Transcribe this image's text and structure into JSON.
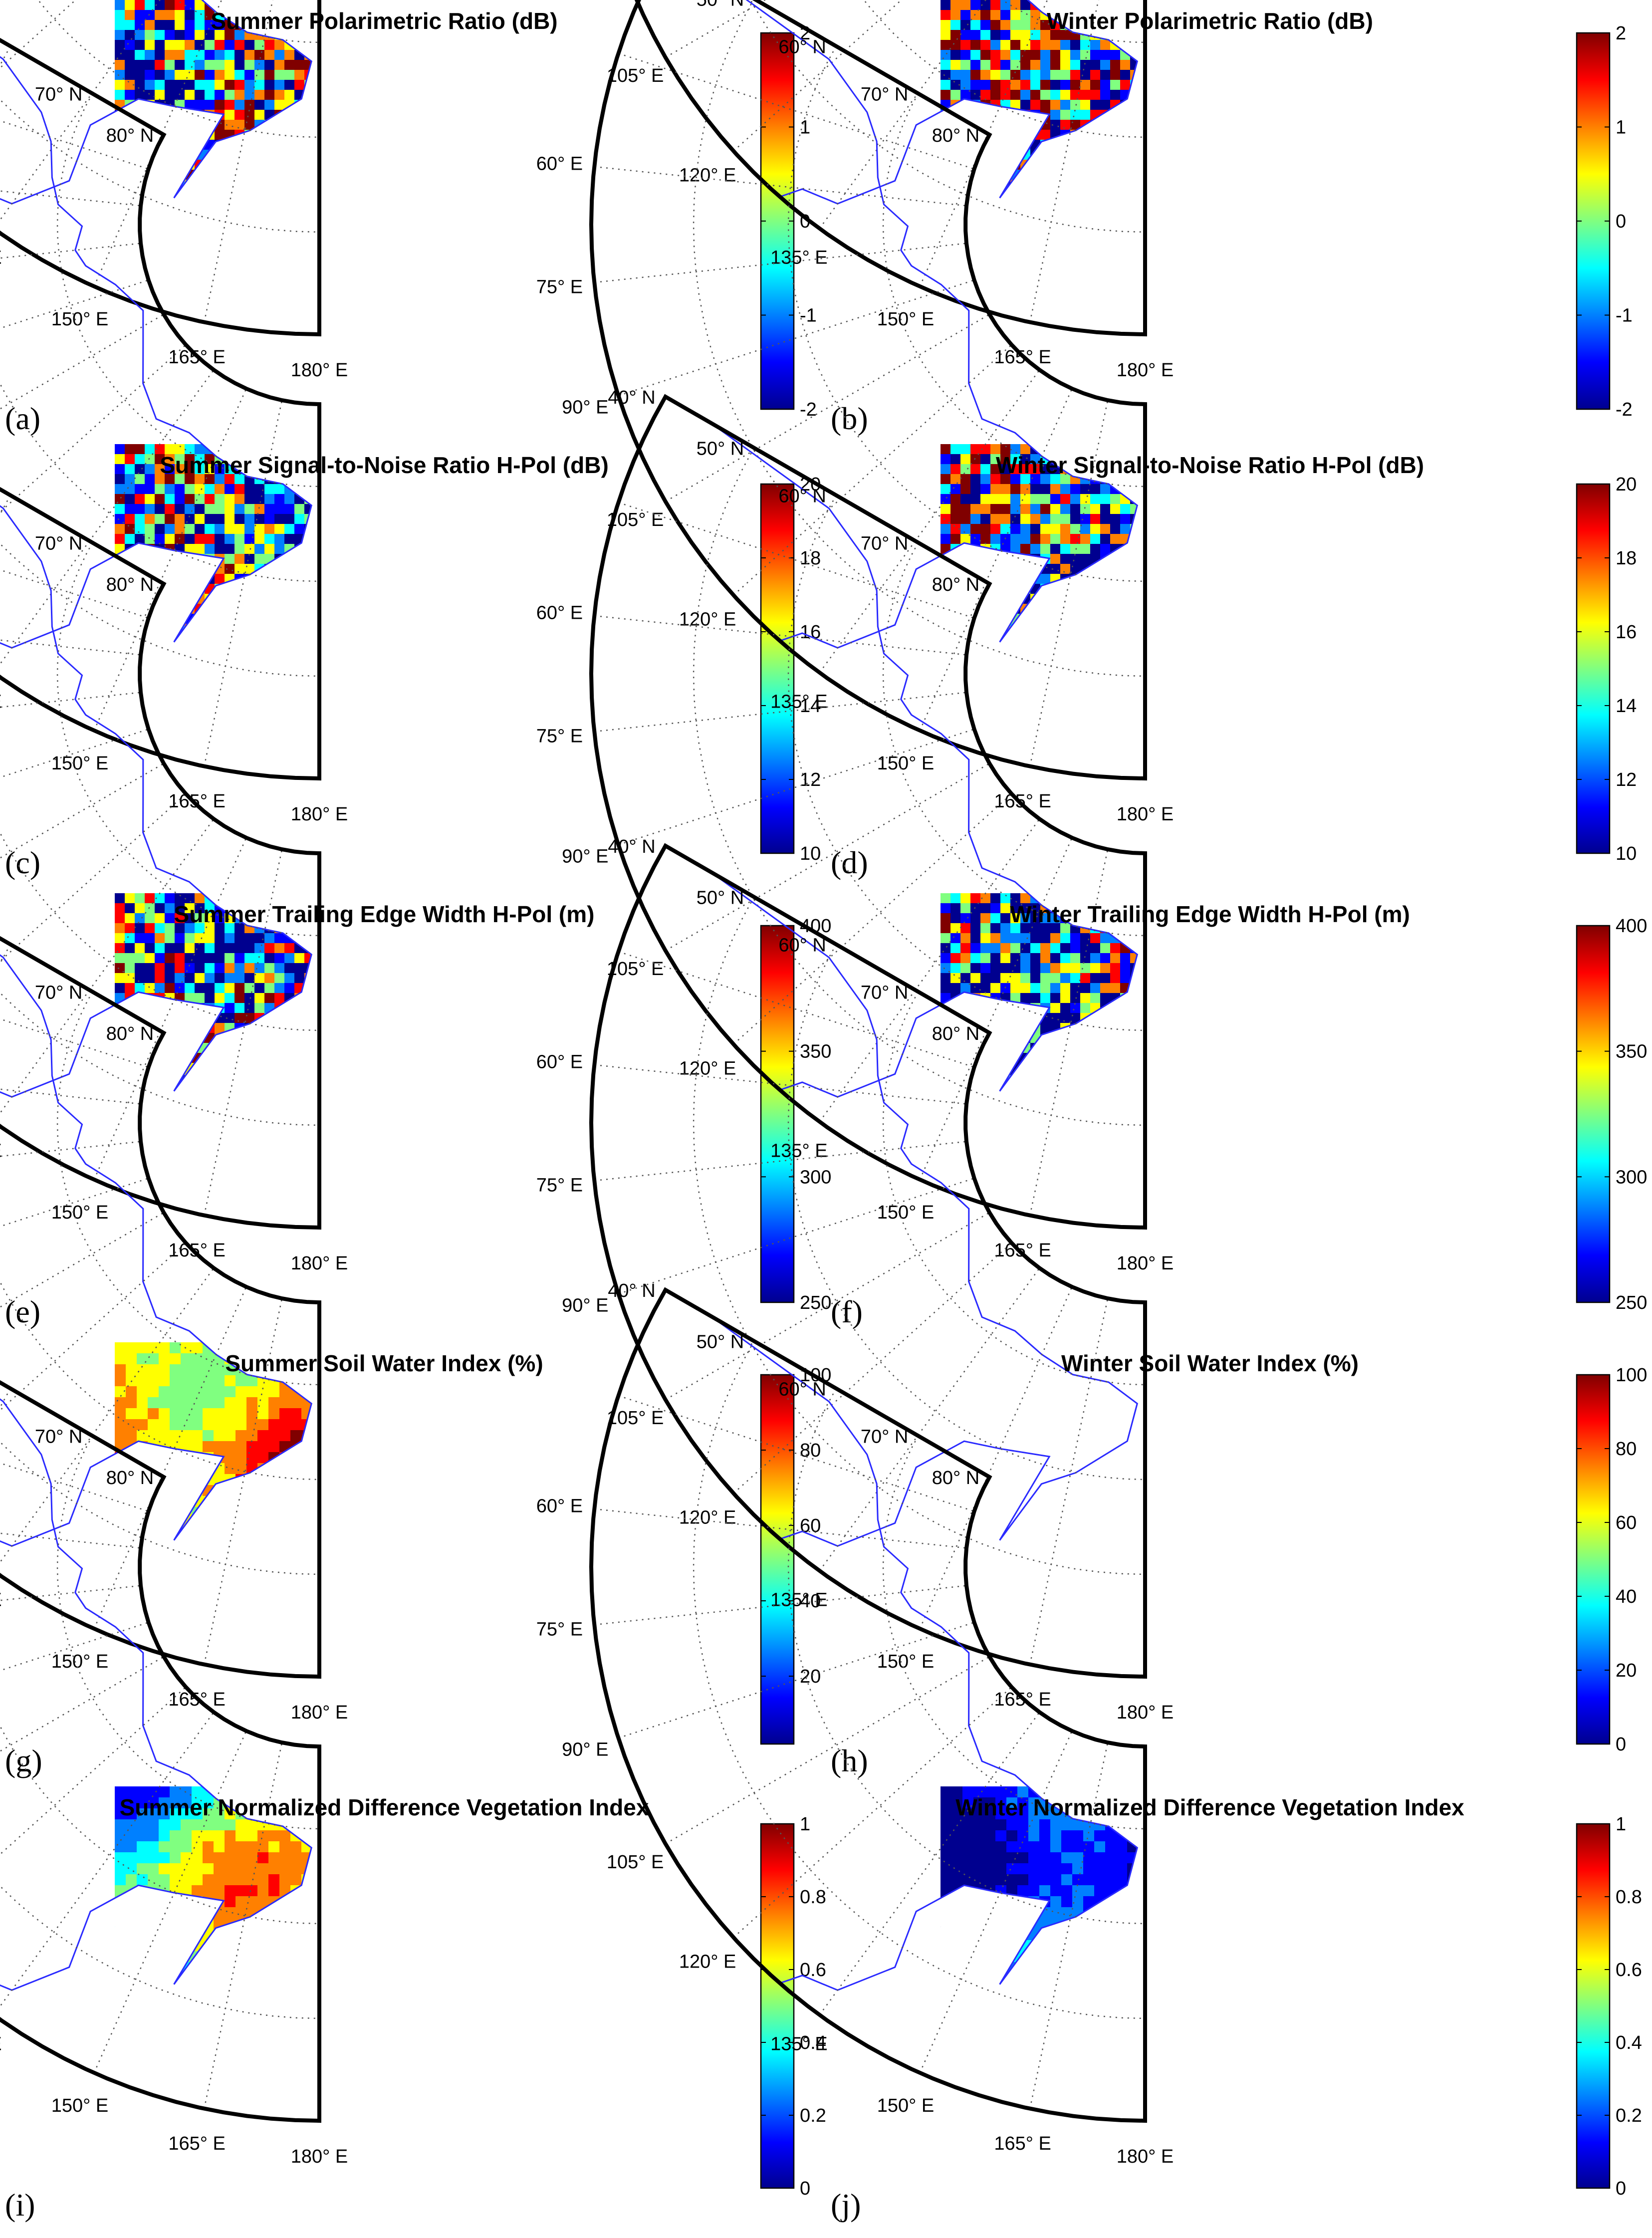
{
  "colors": {
    "jet": [
      "#00008f",
      "#0000ff",
      "#0080ff",
      "#00ffff",
      "#80ff80",
      "#ffff00",
      "#ff8000",
      "#ff0000",
      "#800000"
    ],
    "coast": "#2a2aff",
    "frame": "#000000",
    "grid": "#555555",
    "background": "#ffffff"
  },
  "lat_labels": [
    "40° N",
    "50° N",
    "60° N",
    "70° N",
    "80° N"
  ],
  "lon_labels": [
    "60° E",
    "75° E",
    "90° E",
    "105° E",
    "120° E",
    "135° E",
    "150° E",
    "165° E",
    "180° E"
  ],
  "panels": [
    {
      "id": "a",
      "label": "(a)",
      "title": "Summer Polarimetric Ratio (dB)",
      "colorbar_ticks": [
        "2",
        "1",
        "0",
        "-1",
        "-2"
      ],
      "fill": "noisy",
      "bias": 0.45
    },
    {
      "id": "b",
      "label": "(b)",
      "title": "Winter Polarimetric Ratio (dB)",
      "colorbar_ticks": [
        "2",
        "1",
        "0",
        "-1",
        "-2"
      ],
      "fill": "noisy",
      "bias": 0.42
    },
    {
      "id": "c",
      "label": "(c)",
      "title": "Summer Signal-to-Noise Ratio H-Pol (dB)",
      "colorbar_ticks": [
        "20",
        "18",
        "16",
        "14",
        "12",
        "10"
      ],
      "fill": "noisy",
      "bias": 0.4
    },
    {
      "id": "d",
      "label": "(d)",
      "title": "Winter Signal-to-Noise Ratio H-Pol (dB)",
      "colorbar_ticks": [
        "20",
        "18",
        "16",
        "14",
        "12",
        "10"
      ],
      "fill": "noisy",
      "bias": 0.32
    },
    {
      "id": "e",
      "label": "(e)",
      "title": "Summer Trailing Edge Width H-Pol (m)",
      "colorbar_ticks": [
        "400",
        "350",
        "300",
        "250"
      ],
      "fill": "noisy",
      "bias": 0.45
    },
    {
      "id": "f",
      "label": "(f)",
      "title": "Winter Trailing Edge Width H-Pol (m)",
      "colorbar_ticks": [
        "400",
        "350",
        "300",
        "250"
      ],
      "fill": "noisy",
      "bias": 0.35
    },
    {
      "id": "g",
      "label": "(g)",
      "title": "Summer Soil Water Index (%)",
      "colorbar_ticks": [
        "100",
        "80",
        "60",
        "40",
        "20"
      ],
      "fill": "smooth",
      "bias": 0.75
    },
    {
      "id": "h",
      "label": "(h)",
      "title": "Winter Soil Water Index (%)",
      "colorbar_ticks": [
        "100",
        "80",
        "60",
        "40",
        "20",
        "0"
      ],
      "fill": "sparse",
      "bias": 0.45
    },
    {
      "id": "i",
      "label": "(i)",
      "title": "Summer Normalized Difference Vegetation Index",
      "colorbar_ticks": [
        "1",
        "0.8",
        "0.6",
        "0.4",
        "0.2",
        "0"
      ],
      "fill": "smooth",
      "bias": 0.45
    },
    {
      "id": "j",
      "label": "(j)",
      "title": "Winter Normalized Difference Vegetation Index",
      "colorbar_ticks": [
        "1",
        "0.8",
        "0.6",
        "0.4",
        "0.2",
        "0"
      ],
      "fill": "smooth",
      "bias": 0.12
    }
  ]
}
